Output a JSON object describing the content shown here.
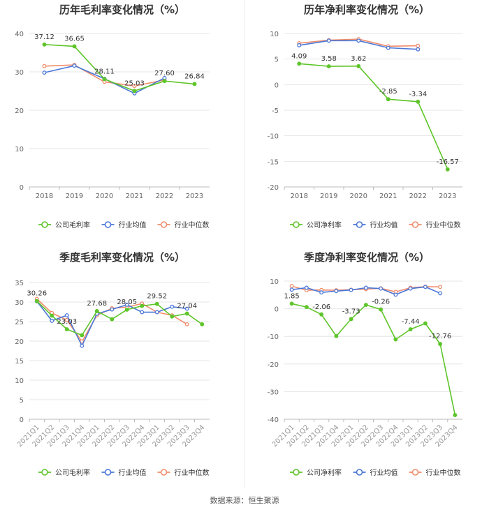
{
  "colors": {
    "company": "#5ec52a",
    "avg": "#4a77d8",
    "median": "#f08d6c",
    "grid": "#e6e6e6",
    "axis_text": "#666666",
    "label_text": "#333333"
  },
  "legend": {
    "company_gross": "公司毛利率",
    "company_net": "公司净利率",
    "avg": "行业均值",
    "median": "行业中位数"
  },
  "source": "数据来源：恒生聚源",
  "chart_data": [
    {
      "type": "line",
      "title": "历年毛利率变化情况（%）",
      "categories": [
        "2018",
        "2019",
        "2020",
        "2021",
        "2022",
        "2023"
      ],
      "ylim": [
        0,
        40
      ],
      "yticks": [
        0,
        10,
        20,
        30,
        40
      ],
      "series": [
        {
          "name": "公司毛利率",
          "values": [
            37.12,
            36.65,
            28.11,
            25.03,
            27.6,
            26.84
          ]
        },
        {
          "name": "行业均值",
          "values": [
            29.8,
            31.6,
            28.2,
            24.4,
            28.4,
            null
          ]
        },
        {
          "name": "行业中位数",
          "values": [
            31.5,
            31.8,
            27.4,
            26.3,
            27.9,
            null
          ]
        }
      ],
      "labels": [
        {
          "i": 0,
          "text": "37.12"
        },
        {
          "i": 1,
          "text": "36.65"
        },
        {
          "i": 2,
          "text": "28.11"
        },
        {
          "i": 3,
          "text": "25.03"
        },
        {
          "i": 4,
          "text": "27.60"
        },
        {
          "i": 5,
          "text": "26.84"
        }
      ]
    },
    {
      "type": "line",
      "title": "历年净利率变化情况（%）",
      "categories": [
        "2018",
        "2019",
        "2020",
        "2021",
        "2022",
        "2023"
      ],
      "ylim": [
        -20,
        10
      ],
      "yticks": [
        -20,
        -15,
        -10,
        -5,
        0,
        5,
        10
      ],
      "series": [
        {
          "name": "公司净利率",
          "values": [
            4.09,
            3.58,
            3.62,
            -2.85,
            -3.34,
            -16.57
          ]
        },
        {
          "name": "行业均值",
          "values": [
            7.7,
            8.6,
            8.6,
            7.2,
            6.9,
            null
          ]
        },
        {
          "name": "行业中位数",
          "values": [
            8.1,
            8.7,
            8.9,
            7.5,
            7.6,
            null
          ]
        }
      ],
      "labels": [
        {
          "i": 0,
          "text": "4.09"
        },
        {
          "i": 1,
          "text": "3.58"
        },
        {
          "i": 2,
          "text": "3.62"
        },
        {
          "i": 3,
          "text": "-2.85"
        },
        {
          "i": 4,
          "text": "-3.34"
        },
        {
          "i": 5,
          "text": "-16.57"
        }
      ]
    },
    {
      "type": "line",
      "title": "季度毛利率变化情况（%）",
      "categories": [
        "2021Q1",
        "2021Q2",
        "2021Q3",
        "2021Q4",
        "2022Q1",
        "2022Q2",
        "2022Q3",
        "2022Q4",
        "2023Q1",
        "2023Q2",
        "2023Q3",
        "2023Q4"
      ],
      "ylim": [
        0,
        35
      ],
      "yticks": [
        0,
        5,
        10,
        15,
        20,
        25,
        30,
        35
      ],
      "series": [
        {
          "name": "公司毛利率",
          "values": [
            30.26,
            26.5,
            23.03,
            21.5,
            27.68,
            25.6,
            28.05,
            29.0,
            29.52,
            26.3,
            27.04,
            24.3
          ]
        },
        {
          "name": "行业均值",
          "values": [
            30.2,
            25.2,
            26.6,
            18.8,
            27.0,
            28.1,
            29.3,
            27.4,
            27.4,
            28.8,
            28.3,
            null
          ]
        },
        {
          "name": "行业中位数",
          "values": [
            30.8,
            27.2,
            25.4,
            19.9,
            26.6,
            28.4,
            28.7,
            29.6,
            27.4,
            26.6,
            24.3,
            null
          ]
        }
      ],
      "labels": [
        {
          "i": 0,
          "text": "30.26"
        },
        {
          "i": 2,
          "text": "23.03"
        },
        {
          "i": 4,
          "text": "27.68"
        },
        {
          "i": 6,
          "text": "28.05"
        },
        {
          "i": 8,
          "text": "29.52"
        },
        {
          "i": 10,
          "text": "27.04"
        }
      ]
    },
    {
      "type": "line",
      "title": "季度净利率变化情况（%）",
      "categories": [
        "2021Q1",
        "2021Q2",
        "2021Q3",
        "2021Q4",
        "2022Q1",
        "2022Q2",
        "2022Q3",
        "2022Q4",
        "2023Q1",
        "2023Q2",
        "2023Q3",
        "2023Q4"
      ],
      "ylim": [
        -40,
        10
      ],
      "yticks": [
        -40,
        -30,
        -20,
        -10,
        0,
        10
      ],
      "series": [
        {
          "name": "公司净利率",
          "values": [
            1.85,
            0.6,
            -2.06,
            -9.9,
            -3.73,
            1.4,
            -0.26,
            -11.1,
            -7.44,
            -5.3,
            -12.76,
            -38.5
          ]
        },
        {
          "name": "行业均值",
          "values": [
            6.9,
            7.6,
            5.9,
            6.4,
            6.8,
            7.6,
            7.3,
            5.1,
            7.3,
            7.9,
            5.6,
            null
          ]
        },
        {
          "name": "行业中位数",
          "values": [
            8.2,
            6.7,
            6.8,
            6.7,
            6.9,
            7.1,
            7.4,
            6.1,
            7.6,
            8.0,
            7.9,
            null
          ]
        }
      ],
      "labels": [
        {
          "i": 0,
          "text": "1.85"
        },
        {
          "i": 2,
          "text": "-2.06"
        },
        {
          "i": 4,
          "text": "-3.73"
        },
        {
          "i": 6,
          "text": "-0.26"
        },
        {
          "i": 8,
          "text": "-7.44"
        },
        {
          "i": 10,
          "text": "-12.76"
        }
      ]
    }
  ]
}
